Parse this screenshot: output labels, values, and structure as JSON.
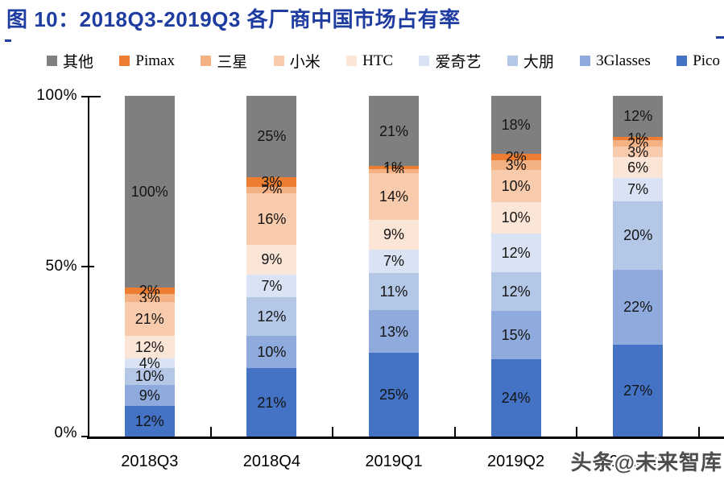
{
  "title": {
    "text": "图 10：2018Q3-2019Q3 各厂商中国市场占有率"
  },
  "watermark": "头条@未来智库",
  "axes": {
    "y_ticks": [
      "100%",
      "50%",
      "0%"
    ],
    "x_ticks": [
      "2018Q3",
      "2018Q4",
      "2019Q1",
      "2019Q2",
      "2019Q3"
    ]
  },
  "chart_data": {
    "type": "bar",
    "stacked": true,
    "unit": "%",
    "title": "图 10：2018Q3-2019Q3 各厂商中国市场占有率",
    "xlabel": "",
    "ylabel": "",
    "ylim": [
      0,
      100
    ],
    "grid": false,
    "legend_position": "top",
    "categories": [
      "2018Q3",
      "2018Q4",
      "2019Q1",
      "2019Q2",
      "2019Q3"
    ],
    "series": [
      {
        "name": "其他",
        "color": "#7F7F7F",
        "values": [
          100,
          25,
          21,
          18,
          12
        ],
        "draw_pct": [
          56.2,
          23.8,
          20.6,
          17.0,
          12
        ]
      },
      {
        "name": "Pimax",
        "color": "#ED7D31",
        "values": [
          2,
          3,
          1,
          2,
          1
        ],
        "draw_pct": [
          1.9,
          2.9,
          1.0,
          1.9,
          1
        ]
      },
      {
        "name": "三星",
        "color": "#F4B183",
        "values": [
          3,
          2,
          1,
          3,
          2
        ],
        "draw_pct": [
          2.5,
          1.9,
          1.0,
          2.8,
          2
        ]
      },
      {
        "name": "小米",
        "color": "#F8CBAD",
        "values": [
          21,
          16,
          14,
          10,
          3
        ],
        "draw_pct": [
          9.9,
          15.2,
          13.7,
          9.4,
          3
        ]
      },
      {
        "name": "HTC",
        "color": "#FBE5D6",
        "values": [
          12,
          9,
          9,
          10,
          6
        ],
        "draw_pct": [
          6.5,
          8.6,
          8.8,
          9.4,
          6
        ]
      },
      {
        "name": "爱奇艺",
        "color": "#DAE3F3",
        "values": [
          4,
          7,
          7,
          12,
          7
        ],
        "draw_pct": [
          2.8,
          6.7,
          6.9,
          11.3,
          7
        ]
      },
      {
        "name": "大朋",
        "color": "#B4C7E7",
        "values": [
          10,
          12,
          11,
          12,
          20
        ],
        "draw_pct": [
          5.1,
          11.4,
          10.8,
          11.3,
          20
        ]
      },
      {
        "name": "3Glasses",
        "color": "#8FAADC",
        "values": [
          9,
          10,
          13,
          15,
          22
        ],
        "draw_pct": [
          6.0,
          9.5,
          12.7,
          14.2,
          22
        ]
      },
      {
        "name": "Pico",
        "color": "#4472C4",
        "values": [
          12,
          21,
          25,
          24,
          27
        ],
        "draw_pct": [
          9.1,
          20.0,
          24.5,
          22.6,
          27
        ]
      }
    ]
  }
}
